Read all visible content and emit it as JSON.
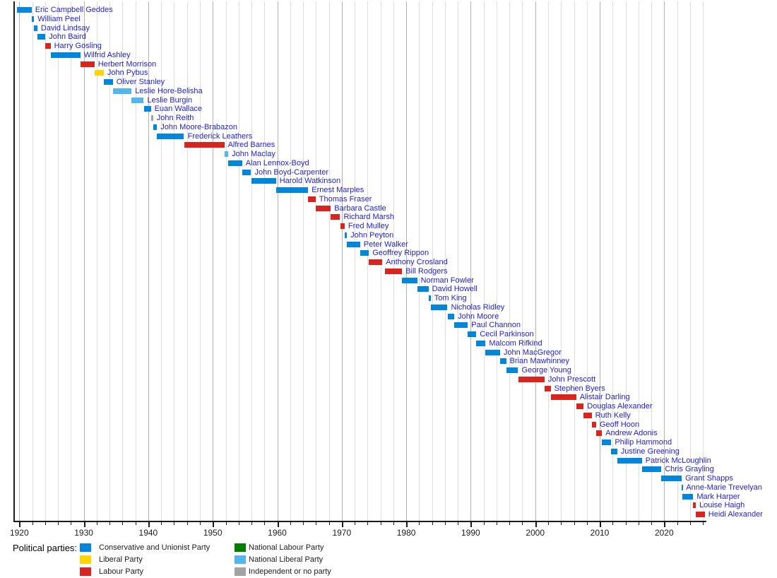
{
  "chart_data": {
    "type": "bar",
    "variant": "horizontal-timeline-gantt",
    "title": "",
    "xlabel": "",
    "ylabel": "",
    "x_axis": {
      "xlim": [
        1919.2,
        2026.5
      ],
      "major_tick_increment_years": 10,
      "minor_tick_increment_years": 2,
      "grid": "vertical gridlines every 2 years, decade lines darker",
      "ticks": [
        1920,
        1930,
        1940,
        1950,
        1960,
        1970,
        1980,
        1990,
        2000,
        2010,
        2020
      ],
      "tick_labels": [
        "1920",
        "1930",
        "1940",
        "1950",
        "1960",
        "1970",
        "1980",
        "1990",
        "2000",
        "2010",
        "2020"
      ]
    },
    "name_text_color": "#2222cc",
    "axis_color": "#1a1a1a",
    "grid_minor_color": "#dedede",
    "grid_decade_color": "#b3b3b3",
    "parties": {
      "conservative": {
        "label": "Conservative and Unionist Party",
        "color": "#0087DC"
      },
      "liberal": {
        "label": "Liberal Party",
        "color": "#FFD400"
      },
      "labour": {
        "label": "Labour Party",
        "color": "#DC241F"
      },
      "national_labour": {
        "label": "National Labour Party",
        "color": "#008000"
      },
      "national_liberal": {
        "label": "National Liberal Party",
        "color": "#54B7EB"
      },
      "independent": {
        "label": "Independent or no party",
        "color": "#A3A3A3"
      }
    },
    "people": [
      {
        "name": "Eric Campbell Geddes",
        "party": "conservative",
        "start": 1919.6,
        "end": 1921.9
      },
      {
        "name": "William Peel",
        "party": "conservative",
        "start": 1921.9,
        "end": 1922.3
      },
      {
        "name": "David Lindsay",
        "party": "conservative",
        "start": 1922.3,
        "end": 1922.8
      },
      {
        "name": "John Baird",
        "party": "conservative",
        "start": 1922.8,
        "end": 1924.05
      },
      {
        "name": "Harry Gosling",
        "party": "labour",
        "start": 1924.05,
        "end": 1924.85
      },
      {
        "name": "Wilfrid Ashley",
        "party": "conservative",
        "start": 1924.85,
        "end": 1929.45
      },
      {
        "name": "Herbert Morrison",
        "party": "labour",
        "start": 1929.45,
        "end": 1931.65
      },
      {
        "name": "John Pybus",
        "party": "liberal",
        "start": 1931.7,
        "end": 1933.1
      },
      {
        "name": "Oliver Stanley",
        "party": "conservative",
        "start": 1933.1,
        "end": 1934.5
      },
      {
        "name": "Leslie Hore-Belisha",
        "party": "national_liberal",
        "start": 1934.5,
        "end": 1937.4
      },
      {
        "name": "Leslie Burgin",
        "party": "national_liberal",
        "start": 1937.4,
        "end": 1939.3
      },
      {
        "name": "Euan Wallace",
        "party": "conservative",
        "start": 1939.3,
        "end": 1940.4
      },
      {
        "name": "John Reith",
        "party": "independent",
        "start": 1940.4,
        "end": 1940.75
      },
      {
        "name": "John Moore-Brabazon",
        "party": "conservative",
        "start": 1940.75,
        "end": 1941.35
      },
      {
        "name": "Frederick Leathers",
        "party": "conservative",
        "start": 1941.35,
        "end": 1945.55
      },
      {
        "name": "Alfred Barnes",
        "party": "labour",
        "start": 1945.6,
        "end": 1951.8
      },
      {
        "name": "John Maclay",
        "party": "national_liberal",
        "start": 1951.8,
        "end": 1952.4
      },
      {
        "name": "Alan Lennox-Boyd",
        "party": "conservative",
        "start": 1952.4,
        "end": 1954.55
      },
      {
        "name": "John Boyd-Carpenter",
        "party": "conservative",
        "start": 1954.55,
        "end": 1955.95
      },
      {
        "name": "Harold Watkinson",
        "party": "conservative",
        "start": 1955.95,
        "end": 1959.8
      },
      {
        "name": "Ernest Marples",
        "party": "conservative",
        "start": 1959.8,
        "end": 1964.8
      },
      {
        "name": "Thomas Fraser",
        "party": "labour",
        "start": 1964.8,
        "end": 1965.95
      },
      {
        "name": "Barbara Castle",
        "party": "labour",
        "start": 1965.95,
        "end": 1968.3
      },
      {
        "name": "Richard Marsh",
        "party": "labour",
        "start": 1968.3,
        "end": 1969.75
      },
      {
        "name": "Fred Mulley",
        "party": "labour",
        "start": 1969.75,
        "end": 1970.45
      },
      {
        "name": "John Peyton",
        "party": "conservative",
        "start": 1970.45,
        "end": 1970.8
      },
      {
        "name": "Peter Walker",
        "party": "conservative",
        "start": 1970.8,
        "end": 1972.85
      },
      {
        "name": "Geoffrey Rippon",
        "party": "conservative",
        "start": 1972.85,
        "end": 1974.2
      },
      {
        "name": "Anthony Crosland",
        "party": "labour",
        "start": 1974.2,
        "end": 1976.3
      },
      {
        "name": "Bill Rodgers",
        "party": "labour",
        "start": 1976.7,
        "end": 1979.35
      },
      {
        "name": "Norman Fowler",
        "party": "conservative",
        "start": 1979.35,
        "end": 1981.7
      },
      {
        "name": "David Howell",
        "party": "conservative",
        "start": 1981.7,
        "end": 1983.45
      },
      {
        "name": "Tom King",
        "party": "conservative",
        "start": 1983.45,
        "end": 1983.8
      },
      {
        "name": "Nicholas Ridley",
        "party": "conservative",
        "start": 1983.8,
        "end": 1986.4
      },
      {
        "name": "John Moore",
        "party": "conservative",
        "start": 1986.4,
        "end": 1987.45
      },
      {
        "name": "Paul Channon",
        "party": "conservative",
        "start": 1987.45,
        "end": 1989.55
      },
      {
        "name": "Cecil Parkinson",
        "party": "conservative",
        "start": 1989.55,
        "end": 1990.85
      },
      {
        "name": "Malcom Rifkind",
        "party": "conservative",
        "start": 1990.85,
        "end": 1992.3
      },
      {
        "name": "John MacGregor",
        "party": "conservative",
        "start": 1992.3,
        "end": 1994.55
      },
      {
        "name": "Brian Mawhinney",
        "party": "conservative",
        "start": 1994.55,
        "end": 1995.5
      },
      {
        "name": "George Young",
        "party": "conservative",
        "start": 1995.5,
        "end": 1997.35
      },
      {
        "name": "John Prescott",
        "party": "labour",
        "start": 1997.35,
        "end": 2001.45
      },
      {
        "name": "Stephen Byers",
        "party": "labour",
        "start": 2001.45,
        "end": 2002.4
      },
      {
        "name": "Alistair Darling",
        "party": "labour",
        "start": 2002.4,
        "end": 2006.35
      },
      {
        "name": "Douglas Alexander",
        "party": "labour",
        "start": 2006.35,
        "end": 2007.5
      },
      {
        "name": "Ruth Kelly",
        "party": "labour",
        "start": 2007.5,
        "end": 2008.75
      },
      {
        "name": "Geoff Hoon",
        "party": "labour",
        "start": 2008.75,
        "end": 2009.45
      },
      {
        "name": "Andrew Adonis",
        "party": "labour",
        "start": 2009.45,
        "end": 2010.35
      },
      {
        "name": "Philip Hammond",
        "party": "conservative",
        "start": 2010.35,
        "end": 2011.8
      },
      {
        "name": "Justine Greening",
        "party": "conservative",
        "start": 2011.8,
        "end": 2012.7
      },
      {
        "name": "Patrick McLoughlin",
        "party": "conservative",
        "start": 2012.7,
        "end": 2016.55
      },
      {
        "name": "Chris Grayling",
        "party": "conservative",
        "start": 2016.55,
        "end": 2019.55
      },
      {
        "name": "Grant Shapps",
        "party": "conservative",
        "start": 2019.55,
        "end": 2022.7
      },
      {
        "name": "Anne-Marie Trevelyan",
        "party": "conservative",
        "start": 2022.7,
        "end": 2022.85
      },
      {
        "name": "Mark Harper",
        "party": "conservative",
        "start": 2022.85,
        "end": 2024.5
      },
      {
        "name": "Louise Haigh",
        "party": "labour",
        "start": 2024.5,
        "end": 2024.9
      },
      {
        "name": "Heidi Alexander",
        "party": "labour",
        "start": 2024.9,
        "end": 2026.3
      }
    ]
  },
  "legend": {
    "title": "Political parties:",
    "items": [
      {
        "key": "conservative",
        "label": "Conservative and Unionist Party",
        "color": "#0087DC",
        "column": 0,
        "row": 0
      },
      {
        "key": "liberal",
        "label": "Liberal Party",
        "color": "#FFD400",
        "column": 0,
        "row": 1
      },
      {
        "key": "labour",
        "label": "Labour Party",
        "color": "#DC241F",
        "column": 0,
        "row": 2
      },
      {
        "key": "national_labour",
        "label": "National Labour Party",
        "color": "#008000",
        "column": 1,
        "row": 0
      },
      {
        "key": "national_liberal",
        "label": "National Liberal Party",
        "color": "#54B7EB",
        "column": 1,
        "row": 1
      },
      {
        "key": "independent",
        "label": "Independent or no party",
        "color": "#A3A3A3",
        "column": 1,
        "row": 2
      }
    ]
  }
}
